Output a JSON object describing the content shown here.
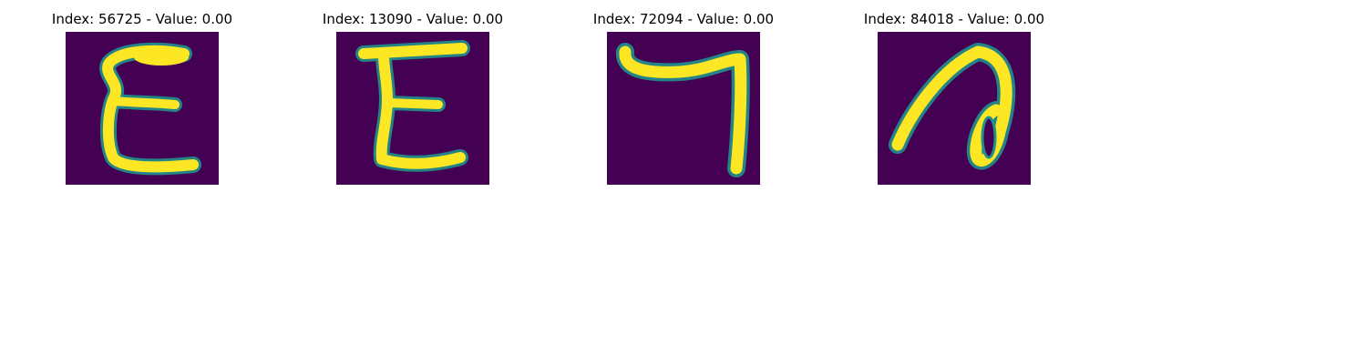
{
  "colors": {
    "background": "#440154",
    "foreground": "#fde725",
    "edge": "#21918c",
    "edge_dark": "#3b528b"
  },
  "panels": [
    {
      "title": "Index: 56725 - Value: 0.00",
      "glyph": "epsilon"
    },
    {
      "title": "Index: 13090 - Value: 0.00",
      "glyph": "epsilon"
    },
    {
      "title": "Index: 72094 - Value: 0.00",
      "glyph": "hook"
    },
    {
      "title": "Index: 84018 - Value: 0.00",
      "glyph": "loop"
    }
  ]
}
